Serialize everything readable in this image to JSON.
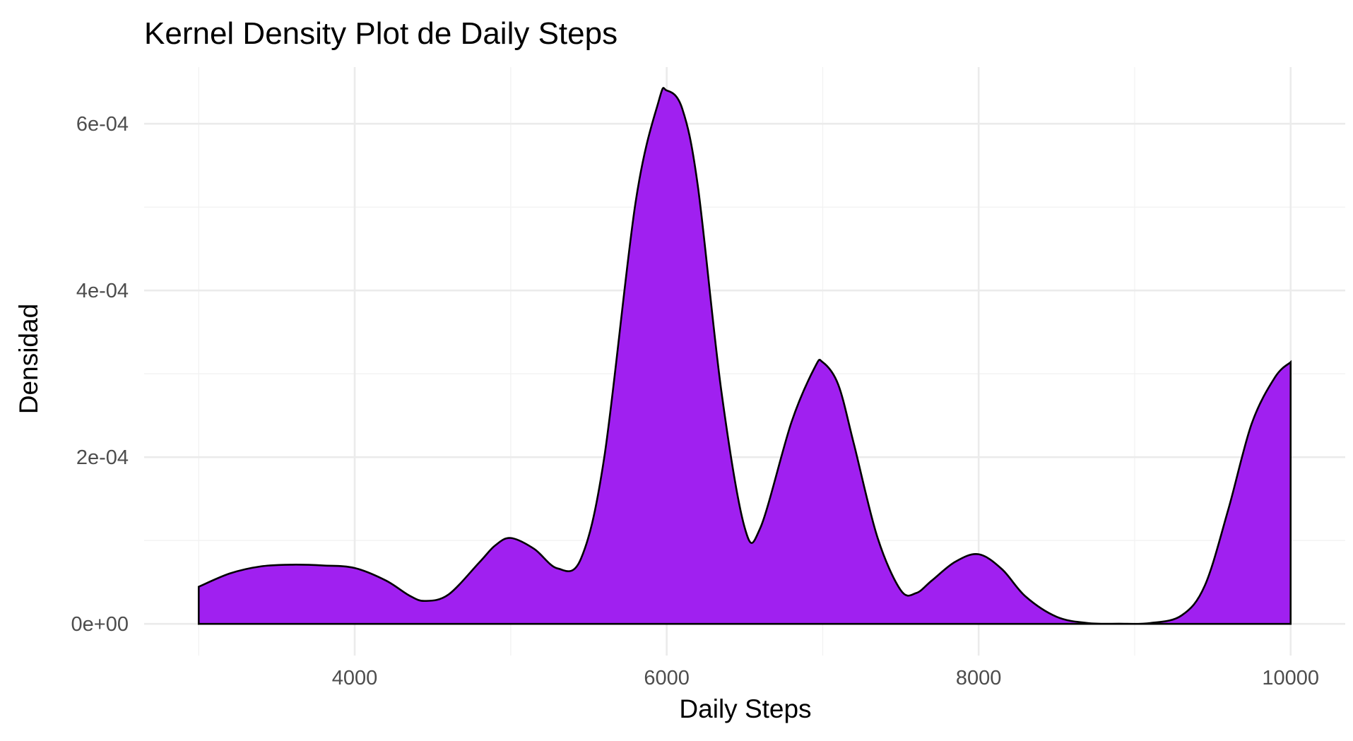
{
  "chart_data": {
    "type": "area",
    "title": "Kernel Density Plot de Daily Steps",
    "xlabel": "Daily Steps",
    "ylabel": "Densidad",
    "xlim": [
      2650,
      10350
    ],
    "ylim": [
      -3.8e-05,
      0.000668
    ],
    "x_ticks": [
      4000,
      6000,
      8000,
      10000
    ],
    "x_tick_labels": [
      "4000",
      "6000",
      "8000",
      "10000"
    ],
    "x_minor_ticks": [
      3000,
      5000,
      7000,
      9000
    ],
    "y_ticks": [
      0,
      0.0002,
      0.0004,
      0.0006
    ],
    "y_tick_labels": [
      "0e+00",
      "2e-04",
      "4e-04",
      "6e-04"
    ],
    "y_minor_ticks": [
      0.0001,
      0.0003,
      0.0005
    ],
    "grid": true,
    "fill_color": "#a020f0",
    "line_color": "#000000",
    "series": [
      {
        "x": [
          3000,
          3200,
          3400,
          3600,
          3800,
          4000,
          4200,
          4350,
          4450,
          4600,
          4800,
          4900,
          5000,
          5150,
          5300,
          5450,
          5600,
          5800,
          5950,
          6000,
          6100,
          6200,
          6350,
          6500,
          6600,
          6800,
          6950,
          7000,
          7100,
          7200,
          7350,
          7500,
          7600,
          7700,
          7850,
          8000,
          8150,
          8300,
          8500,
          8700,
          8900,
          9100,
          9300,
          9450,
          9600,
          9750,
          9900,
          10000
        ],
        "y": [
          4.45e-05,
          6.05e-05,
          6.9e-05,
          7.1e-05,
          7e-05,
          6.7e-05,
          5.2e-05,
          3.4e-05,
          2.75e-05,
          3.5e-05,
          7.4e-05,
          9.4e-05,
          0.000103,
          9e-05,
          6.65e-05,
          7.8e-05,
          0.0002,
          0.000505,
          0.000628,
          0.00064,
          0.000618,
          0.000525,
          0.00028,
          0.0001155,
          0.000115,
          0.000242,
          0.000308,
          0.000314,
          0.000287,
          0.000216,
          0.0001045,
          4.05e-05,
          3.7e-05,
          5.2e-05,
          7.45e-05,
          8.35e-05,
          6.55e-05,
          3.3e-05,
          8.5e-06,
          1e-06,
          2e-07,
          1e-06,
          1e-05,
          4.6e-05,
          0.000137,
          0.00024,
          0.000296,
          0.000314
        ]
      }
    ]
  }
}
